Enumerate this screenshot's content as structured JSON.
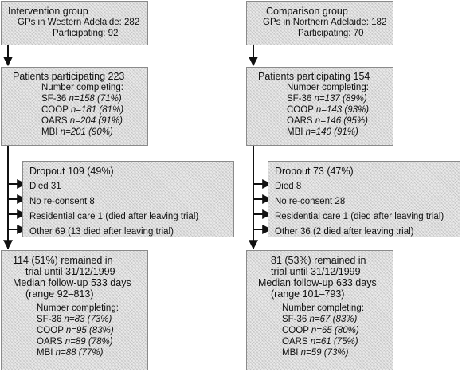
{
  "left": {
    "group": {
      "title": "Intervention group",
      "gps": "GPs in Western Adelaide: 282",
      "participating": "Participating: 92"
    },
    "patients": {
      "title": "Patients participating 223",
      "completing": "Number completing:",
      "items": [
        {
          "label": "SF-36",
          "value": "n=158 (71%)"
        },
        {
          "label": "COOP",
          "value": "n=181 (81%)"
        },
        {
          "label": "OARS",
          "value": "n=204 (91%)"
        },
        {
          "label": "MBI",
          "value": "n=201 (90%)"
        }
      ]
    },
    "dropout": {
      "title": "Dropout 109 (49%)",
      "items": [
        "Died 31",
        "No re-consent 8",
        "Residential care 1 (died after leaving trial)",
        "Other 69 (13 died after leaving trial)"
      ]
    },
    "remained": {
      "lines": [
        "114 (51%) remained in",
        "trial until 31/12/1999",
        "Median follow-up 533 days",
        "(range 92–813)"
      ],
      "completing": "Number completing:",
      "items": [
        {
          "label": "SF-36",
          "value": "n=83 (73%)"
        },
        {
          "label": "COOP",
          "value": "n=95 (83%)"
        },
        {
          "label": "OARS",
          "value": "n=89 (78%)"
        },
        {
          "label": "MBI",
          "value": "n=88 (77%)"
        }
      ]
    }
  },
  "right": {
    "group": {
      "title": "Comparison group",
      "gps": "GPs in Northern Adelaide: 182",
      "participating": "Participating: 70"
    },
    "patients": {
      "title": "Patients participating 154",
      "completing": "Number completing:",
      "items": [
        {
          "label": "SF-36",
          "value": "n=137 (89%)"
        },
        {
          "label": "COOP",
          "value": "n=143 (93%)"
        },
        {
          "label": "OARS",
          "value": "n=146 (95%)"
        },
        {
          "label": "MBI",
          "value": "n=140 (91%)"
        }
      ]
    },
    "dropout": {
      "title": "Dropout 73 (47%)",
      "items": [
        "Died 8",
        "No re-consent 28",
        "Residential care 1 (died after leaving trial)",
        "Other 36 (2 died after leaving trial)"
      ]
    },
    "remained": {
      "lines": [
        "81 (53%) remained in",
        "trial until 31/12/1999",
        "Median follow-up 633 days",
        "(range 101–793)"
      ],
      "completing": "Number completing:",
      "items": [
        {
          "label": "SF-36",
          "value": "n=67 (83%)"
        },
        {
          "label": "COOP",
          "value": "n=65 (80%)"
        },
        {
          "label": "OARS",
          "value": "n=61 (75%)"
        },
        {
          "label": "MBI",
          "value": "n=59 (73%)"
        }
      ]
    }
  }
}
